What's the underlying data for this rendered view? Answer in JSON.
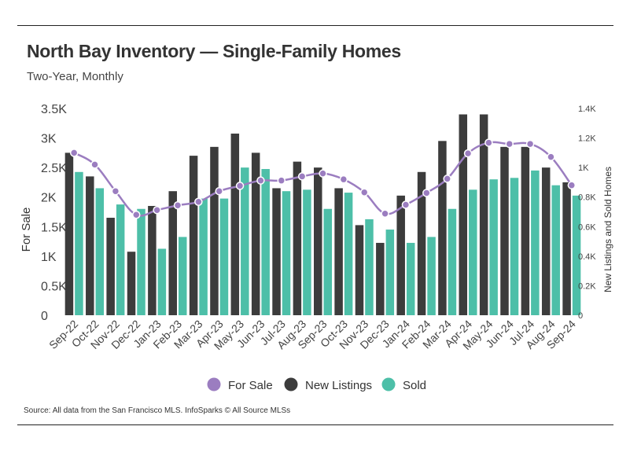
{
  "header": {
    "title": "North Bay Inventory — Single-Family Homes",
    "subtitle": "Two-Year, Monthly"
  },
  "footer": {
    "source": "Source:  All data from the San Francisco MLS. InfoSparks © All Source MLSs"
  },
  "colors": {
    "for_sale": "#9b7dc0",
    "new_listings": "#3c3c3c",
    "sold": "#4dbfa8",
    "line": "#9b7dc0",
    "text": "#444444"
  },
  "chart_data": {
    "type": "bar",
    "categories": [
      "Sep-22",
      "Oct-22",
      "Nov-22",
      "Dec-22",
      "Jan-23",
      "Feb-23",
      "Mar-23",
      "Apr-23",
      "May-23",
      "Jun-23",
      "Jul-23",
      "Aug-23",
      "Sep-23",
      "Oct-23",
      "Nov-23",
      "Dec-23",
      "Jan-24",
      "Feb-24",
      "Mar-24",
      "Apr-24",
      "May-24",
      "Jun-24",
      "Jul-24",
      "Aug-24",
      "Sep-24"
    ],
    "series": [
      {
        "name": "For Sale",
        "type": "line",
        "axis": "left",
        "values": [
          2750,
          2550,
          2100,
          1700,
          1780,
          1860,
          1920,
          2100,
          2190,
          2280,
          2280,
          2350,
          2400,
          2300,
          2080,
          1720,
          1870,
          2070,
          2310,
          2740,
          2920,
          2900,
          2900,
          2680,
          2200
        ]
      },
      {
        "name": "New Listings",
        "type": "bar",
        "axis": "right",
        "values": [
          1.1,
          0.94,
          0.66,
          0.43,
          0.74,
          0.84,
          1.08,
          1.14,
          1.23,
          1.1,
          0.86,
          1.04,
          1.0,
          0.86,
          0.61,
          0.49,
          0.81,
          0.97,
          1.18,
          1.36,
          1.36,
          1.14,
          1.14,
          1.0,
          0.9
        ]
      },
      {
        "name": "Sold",
        "type": "bar",
        "axis": "right",
        "values": [
          0.97,
          0.86,
          0.75,
          0.72,
          0.45,
          0.53,
          0.79,
          0.79,
          1.0,
          0.99,
          0.84,
          0.85,
          0.72,
          0.83,
          0.65,
          0.58,
          0.49,
          0.53,
          0.72,
          0.85,
          0.92,
          0.93,
          0.98,
          0.88,
          0.81
        ]
      }
    ],
    "left_axis": {
      "label": "For Sale",
      "ylim": [
        0,
        3500
      ],
      "ticks": [
        0,
        500,
        1000,
        1500,
        2000,
        2500,
        3000,
        3500
      ],
      "tick_labels": [
        "0",
        "0.5K",
        "1K",
        "1.5K",
        "2K",
        "2.5K",
        "3K",
        "3.5K"
      ]
    },
    "right_axis": {
      "label": "New Listings and Sold Homes",
      "ylim": [
        0,
        1.4
      ],
      "ticks": [
        0,
        0.2,
        0.4,
        0.6,
        0.8,
        1.0,
        1.2,
        1.4
      ],
      "tick_labels": [
        "0",
        "0.2K",
        "0.4K",
        "0.6K",
        "0.8K",
        "1K",
        "1.2K",
        "1.4K"
      ]
    },
    "xlabel": "",
    "grid": false,
    "legend": {
      "placement": "bottom-center",
      "entries": [
        {
          "label": "For Sale",
          "color": "#9b7dc0"
        },
        {
          "label": "New Listings",
          "color": "#3c3c3c"
        },
        {
          "label": "Sold",
          "color": "#4dbfa8"
        }
      ]
    }
  }
}
